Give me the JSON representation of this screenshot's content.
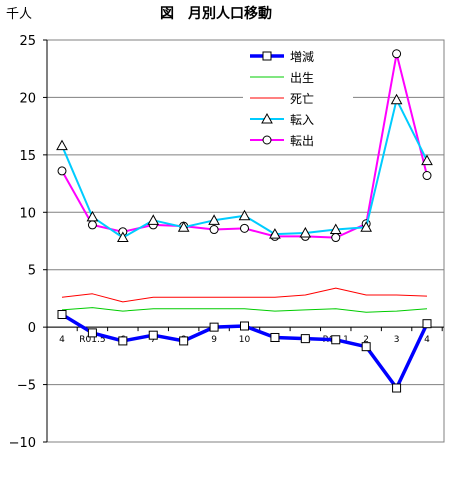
{
  "chart_data": {
    "type": "line",
    "title": "図　月別人口移動",
    "unit": "千人",
    "ylim": [
      -10,
      25
    ],
    "yticks": [
      "25",
      "20",
      "15",
      "10",
      "5",
      "0",
      "−5",
      "−10"
    ],
    "ytick_values": [
      25,
      20,
      15,
      10,
      5,
      0,
      -5,
      -10
    ],
    "categories": [
      "4",
      "R01.5",
      "6",
      "7",
      "8",
      "9",
      "10",
      "11",
      "12",
      "R02.1",
      "2",
      "3",
      "4"
    ],
    "legend_position": "top-right",
    "series": [
      {
        "name": "増減",
        "color": "#0000ff",
        "marker": "square",
        "values": [
          1.1,
          -0.5,
          -1.2,
          -0.7,
          -1.2,
          0.0,
          0.1,
          -0.9,
          -1.0,
          -1.1,
          -1.7,
          -5.3,
          0.3
        ]
      },
      {
        "name": "出生",
        "color": "#00cc00",
        "marker": "none",
        "values": [
          1.5,
          1.7,
          1.4,
          1.6,
          1.6,
          1.6,
          1.6,
          1.4,
          1.5,
          1.6,
          1.3,
          1.4,
          1.6
        ]
      },
      {
        "name": "死亡",
        "color": "#ff0000",
        "marker": "none",
        "values": [
          2.6,
          2.9,
          2.2,
          2.6,
          2.6,
          2.6,
          2.6,
          2.6,
          2.8,
          3.4,
          2.8,
          2.8,
          2.7
        ]
      },
      {
        "name": "転入",
        "color": "#00ccff",
        "marker": "triangle",
        "values": [
          15.8,
          9.6,
          7.8,
          9.3,
          8.7,
          9.3,
          9.7,
          8.1,
          8.2,
          8.5,
          8.7,
          19.8,
          14.5
        ]
      },
      {
        "name": "転出",
        "color": "#ff00ff",
        "marker": "circle",
        "values": [
          13.6,
          8.9,
          8.3,
          8.9,
          8.8,
          8.5,
          8.6,
          7.9,
          7.9,
          7.8,
          9.0,
          23.8,
          13.2
        ]
      }
    ]
  }
}
